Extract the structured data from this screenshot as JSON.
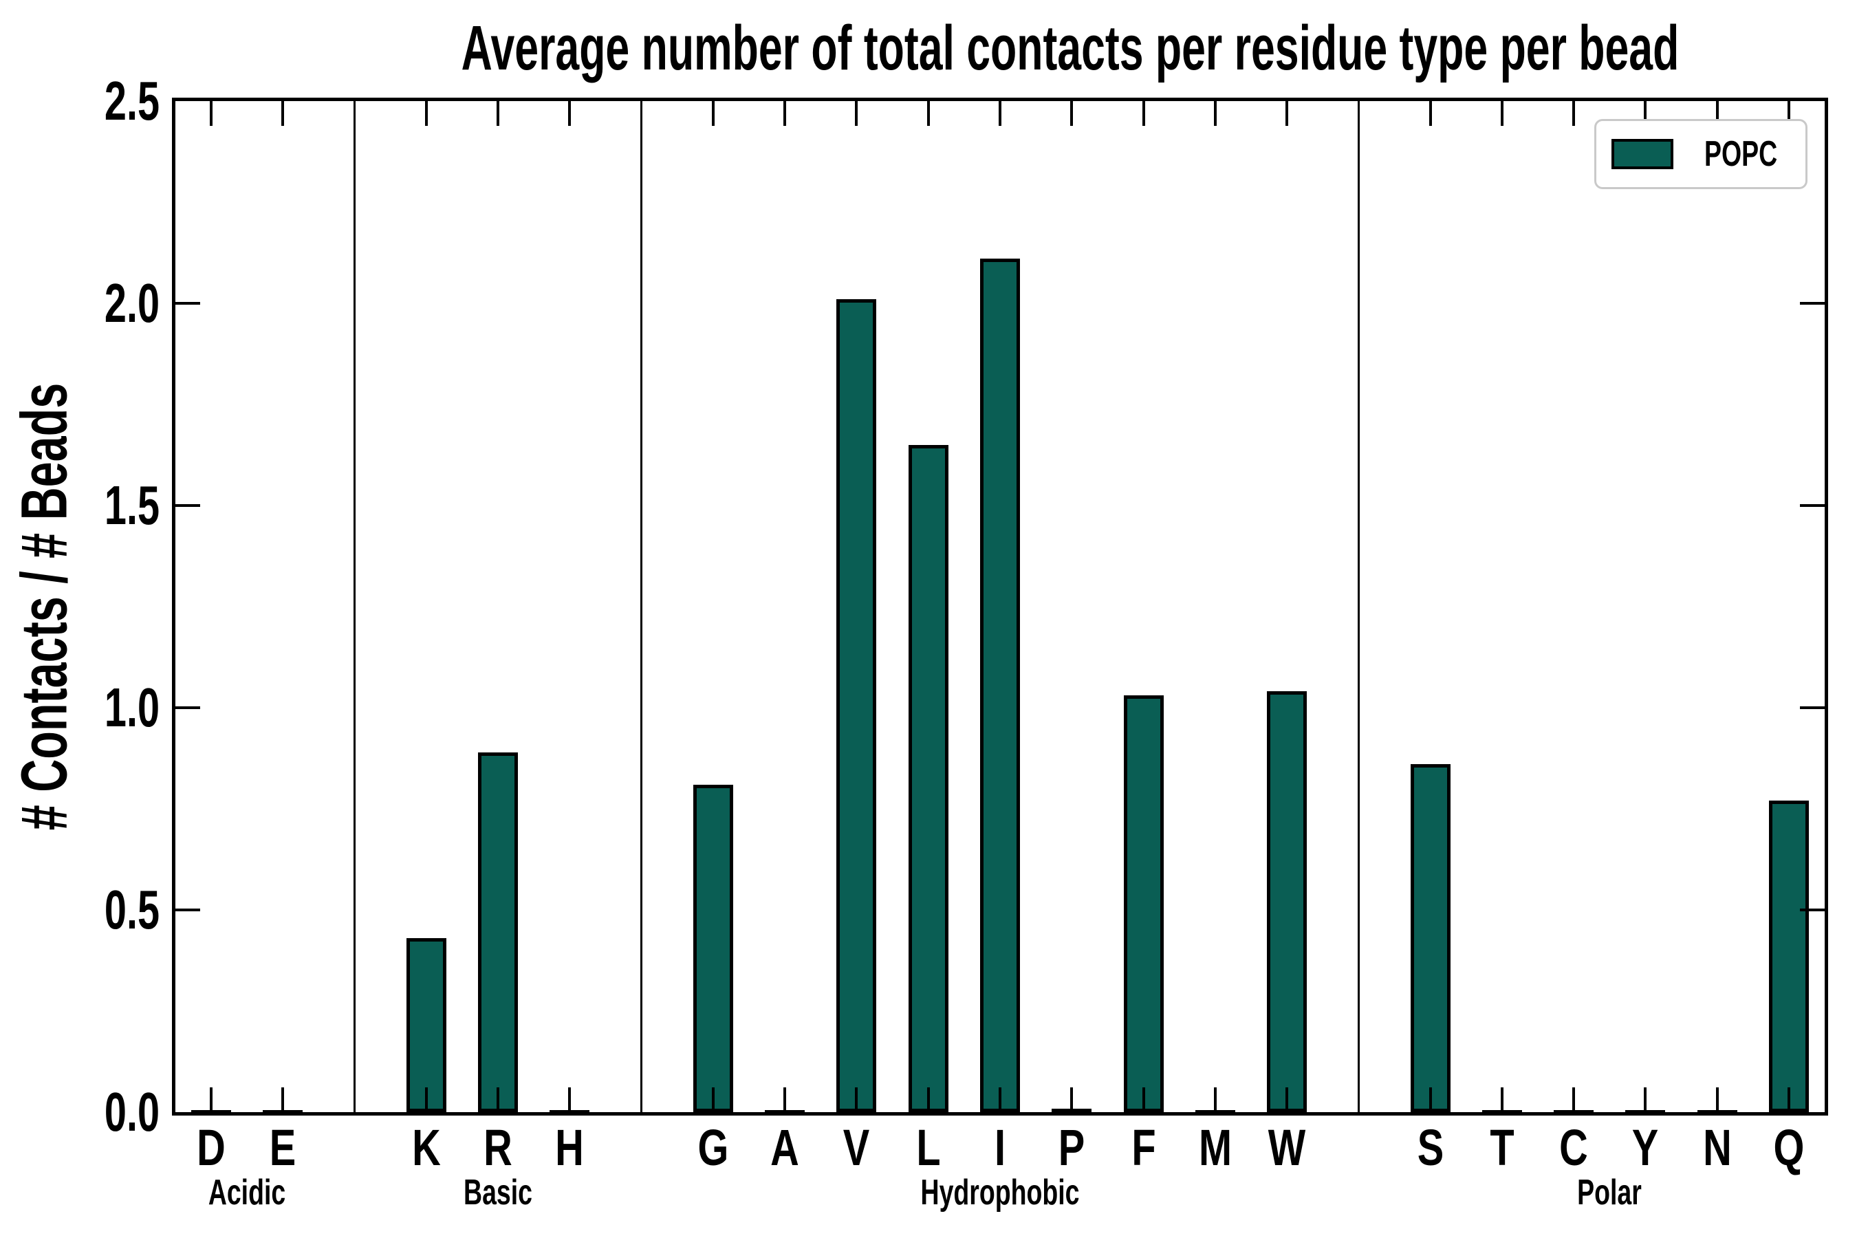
{
  "chart_data": {
    "type": "bar",
    "title": "Average number of total contacts per residue type per bead",
    "xlabel": "",
    "ylabel": "# Contacts / # Beads",
    "ylim": [
      0,
      2.5
    ],
    "yticks": [
      0.0,
      0.5,
      1.0,
      1.5,
      2.0,
      2.5
    ],
    "grid": false,
    "group_dividers": true,
    "legend": {
      "label": "POPC",
      "position": "upper right"
    },
    "bar_color": "#0a5e54",
    "bar_edge_color": "#000000",
    "legend_border_color": "#c9c9c9",
    "groups": [
      {
        "name": "Acidic",
        "categories": [
          "D",
          "E"
        ],
        "values": [
          0.005,
          0.005
        ]
      },
      {
        "name": "Basic",
        "categories": [
          "K",
          "R",
          "H"
        ],
        "values": [
          0.43,
          0.89,
          0.005
        ]
      },
      {
        "name": "Hydrophobic",
        "categories": [
          "G",
          "A",
          "V",
          "L",
          "I",
          "P",
          "F",
          "M",
          "W"
        ],
        "values": [
          0.81,
          0.005,
          2.01,
          1.65,
          2.11,
          0.008,
          1.03,
          0.005,
          1.04
        ]
      },
      {
        "name": "Polar",
        "categories": [
          "S",
          "T",
          "C",
          "Y",
          "N",
          "Q"
        ],
        "values": [
          0.86,
          0.005,
          0.005,
          0.005,
          0.005,
          0.77
        ]
      }
    ]
  }
}
